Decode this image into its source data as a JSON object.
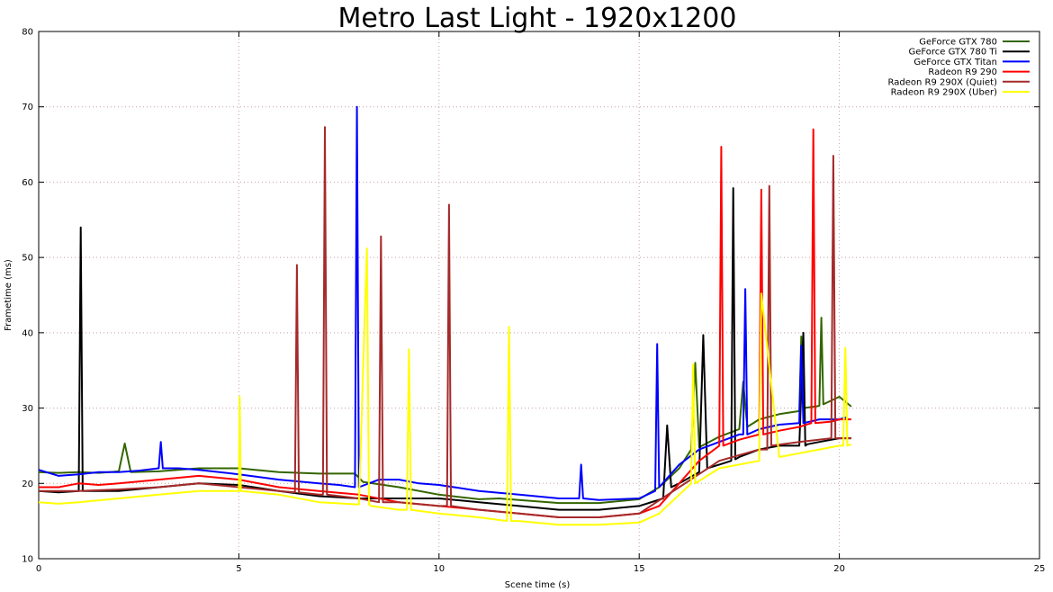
{
  "chart_data": {
    "type": "line",
    "title": "Metro Last Light - 1920x1200",
    "xlabel": "Scene time (s)",
    "ylabel": "Frametime (ms)",
    "xlim": [
      0,
      25
    ],
    "ylim": [
      10,
      80
    ],
    "xticks": [
      0,
      5,
      10,
      15,
      20,
      25
    ],
    "yticks": [
      10,
      20,
      30,
      40,
      50,
      60,
      70,
      80
    ],
    "grid": true,
    "legend_position": "top-right",
    "series": [
      {
        "name": "GeForce GTX 780",
        "color": "#336600",
        "x": [
          0,
          0.5,
          1,
          1.5,
          2,
          2.15,
          2.3,
          3,
          4,
          5,
          6,
          7,
          7.9,
          8.1,
          9,
          10,
          11,
          11.5,
          12,
          13,
          14,
          15,
          15.5,
          16,
          16.3,
          16.4,
          16.5,
          17,
          17.5,
          17.6,
          17.7,
          18,
          18.5,
          19,
          19.05,
          19.1,
          19.5,
          19.55,
          19.6,
          20,
          20.3
        ],
        "y": [
          21.5,
          21.4,
          21.5,
          21.4,
          21.6,
          25.3,
          21.5,
          21.6,
          22.0,
          22.0,
          21.5,
          21.3,
          21.3,
          20.2,
          19.5,
          18.5,
          17.9,
          18.0,
          17.8,
          17.4,
          17.4,
          17.9,
          19.5,
          22.0,
          24.5,
          36.0,
          24.8,
          26.2,
          27.2,
          33.5,
          27.5,
          28.5,
          29.2,
          29.6,
          39.5,
          30.0,
          30.3,
          42.0,
          30.5,
          31.5,
          30.2
        ]
      },
      {
        "name": "GeForce GTX 780 Ti",
        "color": "#000000",
        "x": [
          0,
          0.5,
          1,
          1.05,
          1.1,
          1.5,
          2,
          3,
          4,
          5,
          6,
          7,
          8,
          9,
          10,
          11,
          12,
          13,
          14,
          15,
          15.6,
          15.7,
          15.8,
          16,
          16.5,
          16.6,
          16.7,
          17,
          17.3,
          17.35,
          17.4,
          17.5,
          18,
          18.5,
          19,
          19.1,
          19.15,
          19.2,
          19.5,
          20,
          20.3
        ],
        "y": [
          19.0,
          18.8,
          19.0,
          54.0,
          19.0,
          19.0,
          19.0,
          19.5,
          20.0,
          19.8,
          19.0,
          18.3,
          18.0,
          18.0,
          18.0,
          17.5,
          17.0,
          16.5,
          16.5,
          17.0,
          18.0,
          27.7,
          19.5,
          20.0,
          21.5,
          39.7,
          22.0,
          22.5,
          23.0,
          59.2,
          23.2,
          23.5,
          24.5,
          25.0,
          25.0,
          40.0,
          25.0,
          25.2,
          25.5,
          26.0,
          26.0
        ]
      },
      {
        "name": "GeForce GTX Titan",
        "color": "#0000ff",
        "x": [
          0,
          0.5,
          1,
          1.5,
          2,
          2.5,
          3,
          3.05,
          3.1,
          3.5,
          4,
          5,
          6,
          7,
          7.5,
          7.9,
          7.95,
          8.0,
          8.5,
          9,
          9.5,
          10,
          11,
          12,
          13,
          13.5,
          13.55,
          13.6,
          14,
          15,
          15.4,
          15.45,
          15.5,
          16,
          16.5,
          17,
          17.5,
          17.6,
          17.65,
          17.7,
          18,
          18.5,
          19,
          19.05,
          19.1,
          19.5,
          20,
          20.2
        ],
        "y": [
          21.8,
          21.0,
          21.2,
          21.5,
          21.5,
          21.7,
          22.0,
          25.5,
          22.0,
          22.0,
          21.8,
          21.2,
          20.5,
          20.0,
          19.8,
          19.5,
          70.0,
          19.5,
          20.5,
          20.5,
          20.0,
          19.8,
          19.0,
          18.5,
          18.0,
          18.0,
          22.5,
          18.0,
          17.8,
          18.0,
          19.0,
          38.5,
          19.5,
          22.5,
          24.5,
          25.5,
          26.5,
          26.5,
          45.8,
          26.5,
          27.2,
          27.8,
          28.0,
          38.3,
          28.0,
          28.5,
          28.5,
          28.8
        ]
      },
      {
        "name": "Radeon R9 290",
        "color": "#ff0000",
        "x": [
          0,
          0.5,
          1,
          1.5,
          2,
          3,
          4,
          5,
          6,
          7,
          8,
          9,
          10,
          11,
          12,
          13,
          14,
          15,
          15.5,
          16,
          16.5,
          17,
          17.05,
          17.1,
          17.5,
          18,
          18.05,
          18.1,
          18.5,
          19,
          19.3,
          19.35,
          19.4,
          19.8,
          20,
          20.3
        ],
        "y": [
          19.5,
          19.5,
          20.0,
          19.8,
          20.0,
          20.5,
          21.0,
          20.5,
          19.5,
          19.0,
          18.5,
          17.5,
          17.0,
          16.5,
          16.0,
          15.5,
          15.5,
          16.0,
          17.0,
          20.0,
          23.0,
          25.0,
          64.7,
          25.0,
          25.8,
          26.5,
          59.0,
          26.5,
          27.0,
          27.5,
          28.0,
          67.0,
          28.0,
          28.2,
          28.5,
          28.5
        ]
      },
      {
        "name": "Radeon R9 290X (Quiet)",
        "color": "#a52a2a",
        "x": [
          0,
          1,
          2,
          3,
          4,
          5,
          6,
          6.4,
          6.45,
          6.5,
          7,
          7.1,
          7.15,
          7.2,
          8,
          8.5,
          8.55,
          8.6,
          9,
          10,
          10.2,
          10.25,
          10.3,
          11,
          12,
          13,
          14,
          15,
          16,
          17,
          18,
          18.2,
          18.25,
          18.3,
          19,
          19.8,
          19.85,
          19.9,
          20.3
        ],
        "y": [
          19.0,
          19.0,
          19.2,
          19.5,
          20.0,
          19.5,
          19.0,
          18.8,
          49.0,
          18.8,
          18.5,
          18.5,
          67.3,
          18.5,
          18.0,
          17.5,
          52.8,
          17.5,
          17.5,
          17.0,
          17.0,
          57.0,
          17.0,
          16.5,
          16.0,
          15.5,
          15.5,
          16.0,
          19.5,
          23.0,
          24.5,
          24.5,
          59.5,
          25.0,
          25.5,
          26.0,
          63.5,
          26.0,
          26.0
        ]
      },
      {
        "name": "Radeon R9 290X (Uber)",
        "color": "#ffff00",
        "x": [
          0,
          0.5,
          1,
          2,
          3,
          4,
          5,
          5.02,
          5.05,
          6,
          7,
          8,
          8.15,
          8.2,
          8.25,
          8.3,
          9,
          9.2,
          9.25,
          9.3,
          10,
          11,
          11.7,
          11.75,
          11.8,
          12,
          13,
          14,
          15,
          15.5,
          16,
          16.3,
          16.35,
          16.4,
          17,
          18,
          18.0,
          18.05,
          18.5,
          19,
          19.5,
          20,
          20.1,
          20.15,
          20.2,
          20.3
        ],
        "y": [
          17.5,
          17.3,
          17.5,
          18.0,
          18.5,
          19.0,
          19.0,
          31.5,
          19.0,
          18.5,
          17.5,
          17.2,
          43.0,
          51.2,
          17.2,
          17.0,
          16.5,
          16.5,
          37.8,
          16.5,
          16.0,
          15.5,
          15.0,
          40.8,
          15.0,
          15.0,
          14.5,
          14.5,
          14.8,
          16.0,
          18.5,
          20.0,
          35.8,
          20.0,
          22.0,
          23.0,
          23.5,
          45.2,
          23.5,
          24.0,
          24.5,
          25.0,
          25.0,
          38.0,
          25.0,
          25.2
        ]
      }
    ]
  }
}
